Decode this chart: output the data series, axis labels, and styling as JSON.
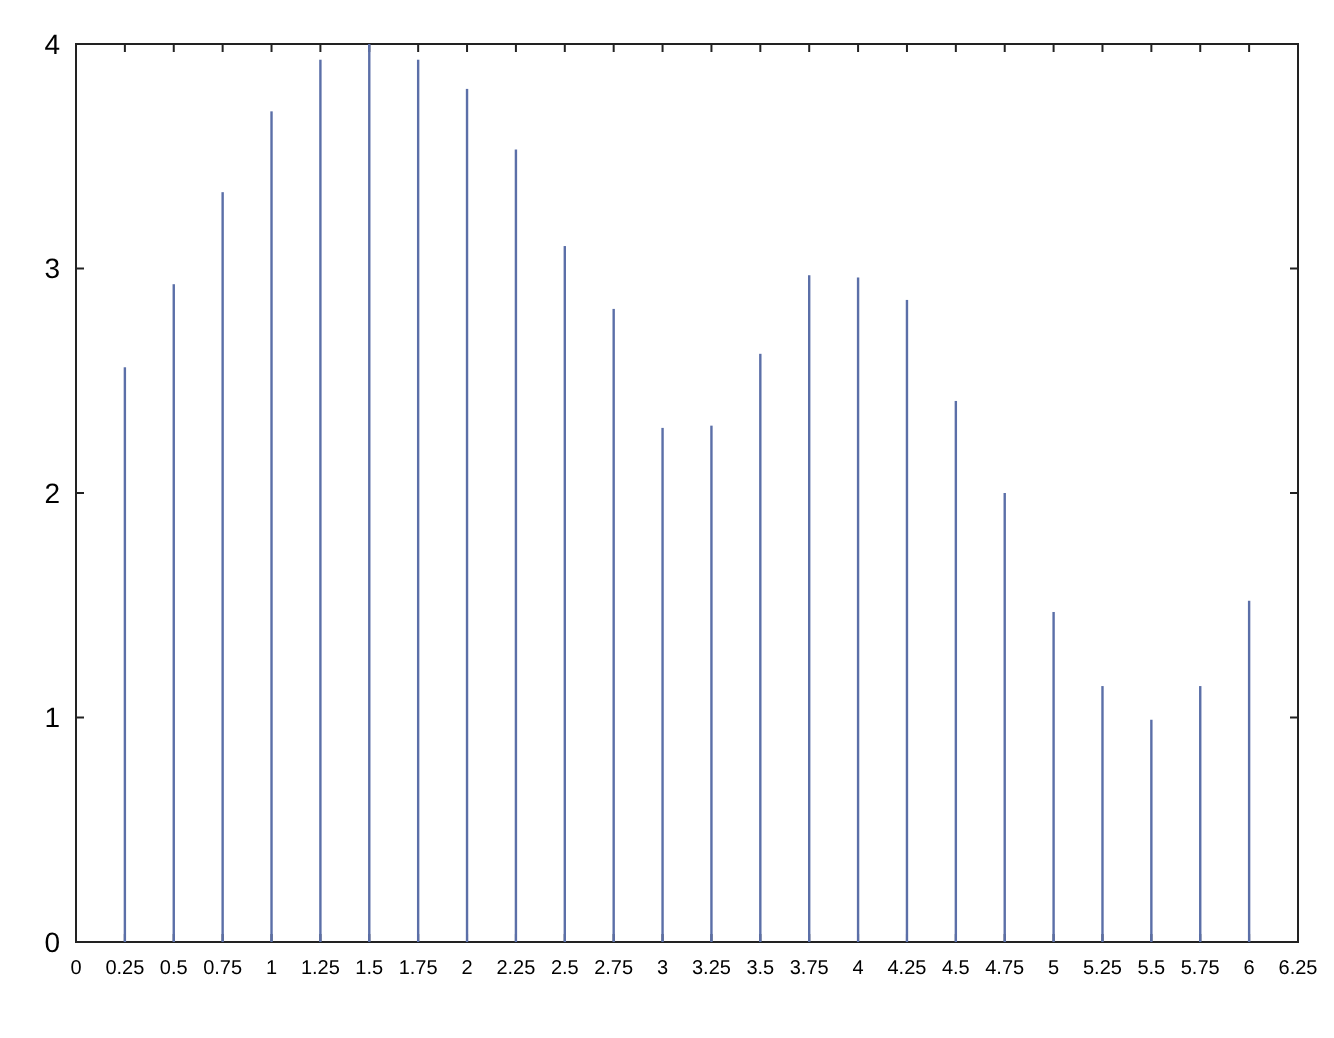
{
  "chart_data": {
    "type": "bar",
    "x": [
      0.25,
      0.5,
      0.75,
      1,
      1.25,
      1.5,
      1.75,
      2,
      2.25,
      2.5,
      2.75,
      3,
      3.25,
      3.5,
      3.75,
      4,
      4.25,
      4.5,
      4.75,
      5,
      5.25,
      5.5,
      5.75,
      6
    ],
    "values": [
      2.56,
      2.93,
      3.34,
      3.7,
      3.93,
      4.0,
      3.93,
      3.8,
      3.53,
      3.1,
      2.82,
      2.29,
      2.3,
      2.62,
      2.97,
      2.96,
      2.86,
      2.41,
      2.0,
      1.47,
      1.14,
      0.99,
      1.14,
      1.52
    ],
    "color": "#5b6fa8",
    "xlim": [
      0,
      6.25
    ],
    "ylim": [
      0,
      4
    ],
    "xticks": [
      0,
      0.25,
      0.5,
      0.75,
      1,
      1.25,
      1.5,
      1.75,
      2,
      2.25,
      2.5,
      2.75,
      3,
      3.25,
      3.5,
      3.75,
      4,
      4.25,
      4.5,
      4.75,
      5,
      5.25,
      5.5,
      5.75,
      6,
      6.25
    ],
    "yticks": [
      0,
      1,
      2,
      3,
      4
    ]
  }
}
